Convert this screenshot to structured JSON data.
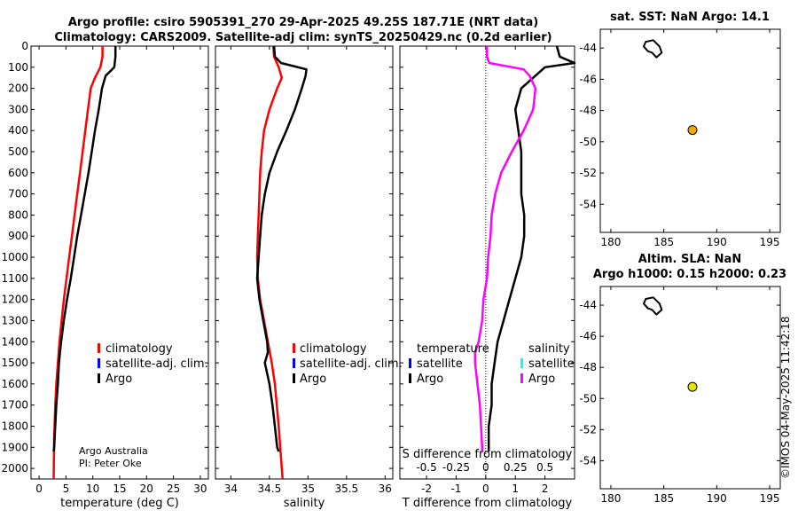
{
  "title": {
    "line1": "Argo profile: csiro 5905391_270 29-Apr-2025 49.25S 187.71E (NRT data)",
    "line2": "Climatology: CARS2009. Satellite-adj clim: synTS_20250429.nc (0.2d earlier)"
  },
  "map_titles": {
    "sst": "sat. SST: NaN Argo: 14.1",
    "sla_line1": "Altim. SLA: NaN",
    "sla_line2": "Argo h1000: 0.15 h2000: 0.23"
  },
  "legend": {
    "climatology": "climatology",
    "satellite": "satellite-adj. clim.",
    "argo": "Argo",
    "diff_temp_header": "temperature",
    "diff_sal_header": "salinity",
    "diff_satellite": "satellite",
    "diff_argo": "Argo"
  },
  "credits": {
    "line1": "Argo Australia",
    "line2": "PI: Peter Oke"
  },
  "stamp": "©IMOS 04-May-2025 11:42:18",
  "colors": {
    "climatology": "#ff0000",
    "satellite": "#0000ff",
    "argo": "#000000",
    "salinity_diff": "#ff00ff",
    "salinity_sat": "#00ffff",
    "sst_dot": "#f2a900",
    "sla_dot": "#e6e600"
  },
  "chart_data": [
    {
      "type": "line",
      "name": "temperature",
      "xlabel": "temperature (deg C)",
      "ylabel": "",
      "xlim": [
        -1.5,
        31.5
      ],
      "ylim": [
        2050,
        0
      ],
      "xticks": [
        0,
        5,
        10,
        15,
        20,
        25,
        30
      ],
      "yticks": [
        0,
        100,
        200,
        300,
        400,
        500,
        600,
        700,
        800,
        900,
        1000,
        1100,
        1200,
        1300,
        1400,
        1500,
        1600,
        1700,
        1800,
        1900,
        2000
      ],
      "series": [
        {
          "name": "climatology",
          "x": [
            11.8,
            11.8,
            11.4,
            10.4,
            9.6,
            9.1,
            8.6,
            8.1,
            7.6,
            7.1,
            6.6,
            6.1,
            5.6,
            5.1,
            4.6,
            4.2,
            3.8,
            3.5,
            3.2,
            3.0,
            2.8,
            2.7
          ],
          "y": [
            0,
            50,
            100,
            150,
            200,
            300,
            400,
            500,
            600,
            700,
            800,
            900,
            1000,
            1100,
            1200,
            1300,
            1400,
            1500,
            1600,
            1700,
            1850,
            2050
          ]
        },
        {
          "name": "Argo",
          "x": [
            14.2,
            14.2,
            14.0,
            13.2,
            12.4,
            11.7,
            11.1,
            10.4,
            9.8,
            9.2,
            8.5,
            7.8,
            7.1,
            6.5,
            5.9,
            5.2,
            4.6,
            4.1,
            3.7,
            3.5,
            3.2,
            3.0,
            2.8,
            2.7
          ],
          "y": [
            0,
            50,
            100,
            120,
            140,
            200,
            300,
            400,
            500,
            600,
            700,
            800,
            900,
            1000,
            1100,
            1200,
            1300,
            1400,
            1500,
            1600,
            1700,
            1800,
            1900,
            1920
          ]
        }
      ]
    },
    {
      "type": "line",
      "name": "salinity",
      "xlabel": "salinity",
      "ylabel": "",
      "xlim": [
        33.8,
        36.1
      ],
      "ylim": [
        2050,
        0
      ],
      "xticks": [
        34,
        34.5,
        35,
        35.5,
        36
      ],
      "yticks": [],
      "series": [
        {
          "name": "climatology",
          "x": [
            34.55,
            34.56,
            34.62,
            34.66,
            34.6,
            34.5,
            34.43,
            34.4,
            34.38,
            34.37,
            34.36,
            34.35,
            34.34,
            34.35,
            34.38,
            34.43,
            34.48,
            34.53,
            34.57,
            34.62,
            34.67
          ],
          "y": [
            0,
            50,
            100,
            150,
            200,
            300,
            400,
            500,
            600,
            700,
            800,
            900,
            1000,
            1100,
            1200,
            1300,
            1400,
            1500,
            1600,
            1800,
            2050
          ]
        },
        {
          "name": "Argo",
          "x": [
            34.56,
            34.57,
            34.65,
            34.98,
            34.97,
            34.92,
            34.83,
            34.72,
            34.6,
            34.5,
            34.44,
            34.4,
            34.38,
            34.36,
            34.34,
            34.37,
            34.42,
            34.47,
            34.48,
            34.44,
            34.5,
            34.54,
            34.57,
            34.6,
            34.62
          ],
          "y": [
            0,
            50,
            80,
            110,
            140,
            200,
            300,
            400,
            500,
            600,
            700,
            800,
            900,
            1000,
            1100,
            1200,
            1300,
            1400,
            1450,
            1500,
            1600,
            1700,
            1800,
            1900,
            1920
          ]
        }
      ]
    },
    {
      "type": "line",
      "name": "difference from climatology",
      "xlabel": "T difference from climatology",
      "x2label": "S difference from climatology",
      "xlim": [
        -2.9,
        3.0
      ],
      "x2lim": [
        -0.725,
        0.75
      ],
      "ylim": [
        2050,
        0
      ],
      "xticks": [
        -2,
        -1,
        0,
        1,
        2
      ],
      "x2ticks": [
        "-0.5",
        "-0.25",
        "0",
        "0.25",
        "0.5"
      ],
      "series": [
        {
          "name": "T Argo",
          "x": [
            2.4,
            2.5,
            3.0,
            2.0,
            1.6,
            1.2,
            1.0,
            1.1,
            1.2,
            1.2,
            1.2,
            1.3,
            1.3,
            1.2,
            1.0,
            0.8,
            0.6,
            0.4,
            0.3,
            0.2,
            0.2,
            0.1,
            0.1,
            0.1
          ],
          "y": [
            0,
            50,
            80,
            100,
            150,
            200,
            300,
            400,
            500,
            600,
            700,
            800,
            900,
            1000,
            1100,
            1200,
            1300,
            1400,
            1500,
            1600,
            1700,
            1800,
            1900,
            1920
          ]
        },
        {
          "name": "S Argo",
          "x": [
            0.01,
            0.01,
            0.03,
            0.32,
            0.37,
            0.42,
            0.4,
            0.32,
            0.22,
            0.13,
            0.08,
            0.05,
            0.04,
            0.02,
            0.01,
            -0.02,
            -0.03,
            -0.06,
            -0.09,
            -0.09,
            -0.07,
            -0.05,
            -0.04,
            -0.03,
            -0.03
          ],
          "y": [
            0,
            50,
            80,
            110,
            140,
            200,
            300,
            400,
            500,
            600,
            700,
            800,
            900,
            1000,
            1100,
            1200,
            1300,
            1400,
            1450,
            1500,
            1600,
            1700,
            1800,
            1900,
            1920
          ]
        }
      ]
    },
    {
      "type": "scatter",
      "name": "sat. SST map",
      "xlim": [
        179,
        196
      ],
      "ylim": [
        -55.8,
        -42.8
      ],
      "xticks": [
        180,
        185,
        190,
        195
      ],
      "yticks": [
        -44,
        -46,
        -48,
        -50,
        -52,
        -54
      ],
      "points": [
        {
          "lon": 187.71,
          "lat": -49.25
        }
      ],
      "coast": [
        [
          183.3,
          -43.6
        ],
        [
          184.0,
          -43.5
        ],
        [
          184.6,
          -43.9
        ],
        [
          184.8,
          -44.3
        ],
        [
          184.3,
          -44.6
        ],
        [
          183.9,
          -44.3
        ],
        [
          183.5,
          -44.2
        ],
        [
          183.1,
          -43.9
        ]
      ]
    },
    {
      "type": "scatter",
      "name": "altimetry SLA map",
      "xlim": [
        179,
        196
      ],
      "ylim": [
        -55.8,
        -42.8
      ],
      "xticks": [
        180,
        185,
        190,
        195
      ],
      "yticks": [
        -44,
        -46,
        -48,
        -50,
        -52,
        -54
      ],
      "points": [
        {
          "lon": 187.71,
          "lat": -49.25
        }
      ],
      "coast": [
        [
          183.3,
          -43.6
        ],
        [
          184.0,
          -43.5
        ],
        [
          184.6,
          -43.9
        ],
        [
          184.8,
          -44.3
        ],
        [
          184.3,
          -44.6
        ],
        [
          183.9,
          -44.3
        ],
        [
          183.5,
          -44.2
        ],
        [
          183.1,
          -43.9
        ]
      ]
    }
  ]
}
